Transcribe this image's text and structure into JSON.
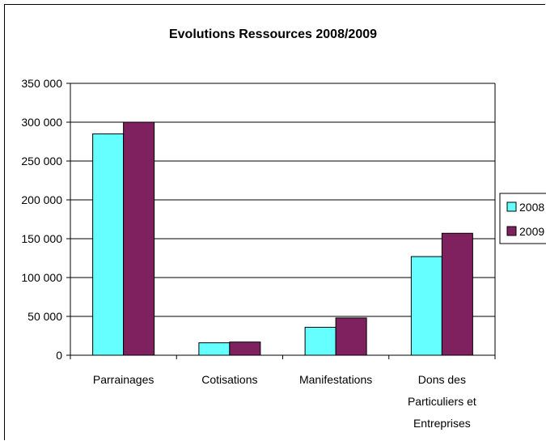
{
  "chart_data": {
    "type": "bar",
    "title": "Evolutions Ressources 2008/2009",
    "xlabel": "",
    "ylabel": "",
    "categories": [
      [
        "Parrainages"
      ],
      [
        "Cotisations"
      ],
      [
        "Manifestations"
      ],
      [
        "Dons des",
        "Particuliers et",
        "Entreprises"
      ]
    ],
    "series": [
      {
        "name": "2008",
        "color": "#66FFFF",
        "values": [
          285000,
          16000,
          36000,
          127000
        ]
      },
      {
        "name": "2009",
        "color": "#80215F",
        "values": [
          300000,
          17000,
          48000,
          157000
        ]
      }
    ],
    "ylim": [
      0,
      350000
    ],
    "yticks": [
      0,
      50000,
      100000,
      150000,
      200000,
      250000,
      300000,
      350000
    ],
    "ytick_labels": [
      "0",
      "50 000",
      "100 000",
      "150 000",
      "200 000",
      "250 000",
      "300 000",
      "350 000"
    ],
    "grid": true,
    "legend": "right"
  }
}
